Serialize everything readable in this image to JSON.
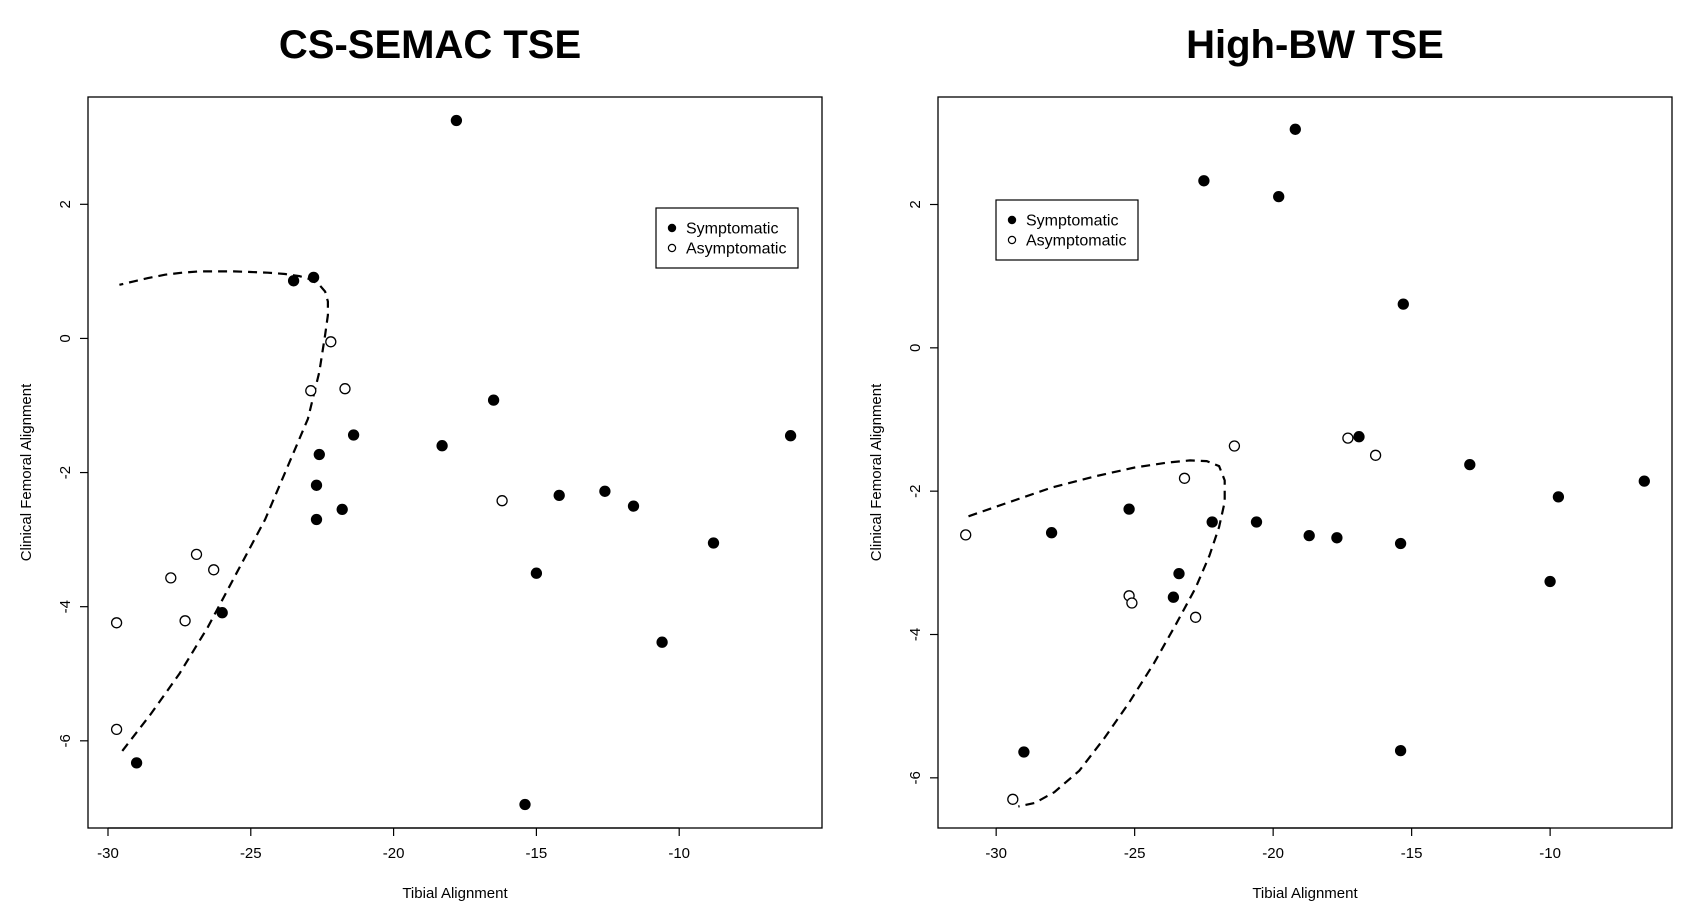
{
  "chart_data": [
    {
      "type": "scatter",
      "title": "CS-SEMAC TSE",
      "xlabel": "Tibial Alignment",
      "ylabel": "Clinical Femoral Alignment",
      "xlim": [
        -30.7,
        -5
      ],
      "ylim": [
        -7.3,
        3.6
      ],
      "xticks": [
        -30,
        -25,
        -20,
        -15,
        -10
      ],
      "yticks": [
        -6,
        -4,
        -2,
        0,
        2
      ],
      "legend": {
        "position": "top-right",
        "entries": [
          "Symptomatic",
          "Asymptomatic"
        ]
      },
      "series": [
        {
          "name": "Symptomatic",
          "marker": "filled-circle",
          "x": [
            -17.8,
            -23.5,
            -22.8,
            -21.4,
            -22.6,
            -22.7,
            -22.7,
            -21.8,
            -16.5,
            -18.3,
            -14.2,
            -12.6,
            -11.6,
            -15.0,
            -8.8,
            -10.6,
            -6.1,
            -26.0,
            -29.0,
            -15.4
          ],
          "y": [
            3.25,
            0.86,
            0.91,
            -1.44,
            -1.73,
            -2.19,
            -2.7,
            -2.55,
            -0.92,
            -1.6,
            -2.34,
            -2.28,
            -2.5,
            -3.5,
            -3.05,
            -4.53,
            -1.45,
            -4.09,
            -6.33,
            -6.95
          ]
        },
        {
          "name": "Asymptomatic",
          "marker": "open-circle",
          "x": [
            -22.2,
            -22.9,
            -21.7,
            -16.2,
            -26.9,
            -26.3,
            -27.8,
            -27.3,
            -29.7,
            -29.7
          ],
          "y": [
            -0.05,
            -0.78,
            -0.75,
            -2.42,
            -3.22,
            -3.45,
            -3.57,
            -4.21,
            -4.24,
            -5.83
          ]
        }
      ],
      "lines": [
        {
          "name": "boundary",
          "style": "dashed",
          "x": [
            -29.5,
            -28.5,
            -27.5,
            -26.5,
            -25.5,
            -24.5,
            -23.7,
            -23.0,
            -22.6,
            -22.4,
            -22.3,
            -22.3,
            -22.4,
            -22.6,
            -22.9,
            -23.3,
            -23.8,
            -24.4,
            -25.0,
            -25.6,
            -26.2,
            -26.8,
            -27.4,
            -28.0,
            -28.6,
            -29.1,
            -29.6
          ],
          "y": [
            -6.15,
            -5.6,
            -5.0,
            -4.3,
            -3.5,
            -2.7,
            -1.9,
            -1.2,
            -0.5,
            0.05,
            0.35,
            0.55,
            0.7,
            0.8,
            0.88,
            0.93,
            0.96,
            0.98,
            0.99,
            1.0,
            1.0,
            1.0,
            0.98,
            0.95,
            0.9,
            0.85,
            0.8
          ]
        }
      ]
    },
    {
      "type": "scatter",
      "title": "High-BW TSE",
      "xlabel": "Tibial Alignment",
      "ylabel": "Clinical Femoral Alignment",
      "xlim": [
        -32.1,
        -5.6
      ],
      "ylim": [
        -6.7,
        3.5
      ],
      "xticks": [
        -30,
        -25,
        -20,
        -15,
        -10
      ],
      "yticks": [
        -6,
        -4,
        -2,
        0,
        2
      ],
      "legend": {
        "position": "top-left",
        "entries": [
          "Symptomatic",
          "Asymptomatic"
        ]
      },
      "series": [
        {
          "name": "Symptomatic",
          "marker": "filled-circle",
          "x": [
            -19.2,
            -22.5,
            -19.8,
            -15.3,
            -16.9,
            -12.9,
            -25.2,
            -28.0,
            -22.2,
            -20.6,
            -18.7,
            -17.7,
            -15.4,
            -23.4,
            -23.6,
            -29.0,
            -15.4,
            -9.7,
            -10.0,
            -6.6
          ],
          "y": [
            3.05,
            2.33,
            2.11,
            0.61,
            -1.24,
            -1.63,
            -2.25,
            -2.58,
            -2.43,
            -2.43,
            -2.62,
            -2.65,
            -2.73,
            -3.15,
            -3.48,
            -5.64,
            -5.62,
            -2.08,
            -3.26,
            -1.86
          ]
        },
        {
          "name": "Asymptomatic",
          "marker": "open-circle",
          "x": [
            -21.4,
            -17.3,
            -16.3,
            -23.2,
            -31.1,
            -25.2,
            -25.1,
            -22.8,
            -29.4
          ],
          "y": [
            -1.37,
            -1.26,
            -1.5,
            -1.82,
            -2.61,
            -3.46,
            -3.56,
            -3.76,
            -6.3
          ]
        }
      ],
      "lines": [
        {
          "name": "boundary",
          "style": "dashed",
          "x": [
            -31.0,
            -29.5,
            -28.0,
            -26.5,
            -25.0,
            -23.8,
            -23.0,
            -22.4,
            -21.95,
            -21.75,
            -21.75,
            -21.95,
            -22.3,
            -22.8,
            -23.5,
            -24.3,
            -25.2,
            -26.1,
            -27.0,
            -27.9,
            -28.6,
            -29.2
          ],
          "y": [
            -2.35,
            -2.15,
            -1.95,
            -1.8,
            -1.67,
            -1.6,
            -1.57,
            -1.58,
            -1.65,
            -1.85,
            -2.15,
            -2.5,
            -2.9,
            -3.35,
            -3.85,
            -4.4,
            -4.95,
            -5.45,
            -5.9,
            -6.2,
            -6.35,
            -6.4
          ]
        }
      ]
    }
  ]
}
